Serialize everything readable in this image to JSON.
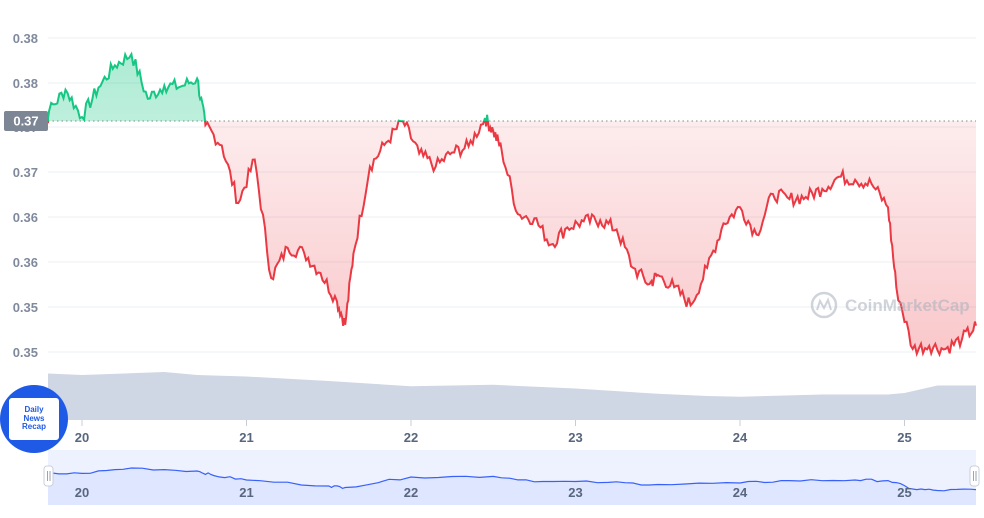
{
  "chart_data": {
    "type": "line",
    "x_tick_labels": [
      "20",
      "21",
      "22",
      "23",
      "24",
      "25"
    ],
    "y_tick_labels": [
      "0.38",
      "0.38",
      "0.37",
      "0.37",
      "0.36",
      "0.36",
      "0.35",
      "0.35"
    ],
    "baseline_label": "0.37",
    "watermark": "CoinMarketCap",
    "grid": true,
    "colors": {
      "above_baseline": "#16c784",
      "below_baseline": "#ea3943",
      "volume": "#cfd6e4",
      "navigator_line": "#3861fb",
      "navigator_fill": "#dfe6ff"
    },
    "price_series": {
      "x": [
        19.72,
        19.8,
        19.9,
        20.0,
        20.1,
        20.2,
        20.3,
        20.4,
        20.5,
        20.6,
        20.7,
        20.75,
        20.85,
        20.95,
        21.05,
        21.15,
        21.25,
        21.35,
        21.45,
        21.55,
        21.6,
        21.65,
        21.75,
        21.85,
        21.95,
        22.05,
        22.15,
        22.25,
        22.35,
        22.45,
        22.5,
        22.55,
        22.65,
        22.75,
        22.85,
        22.95,
        23.05,
        23.15,
        23.25,
        23.35,
        23.45,
        23.5,
        23.6,
        23.7,
        23.8,
        23.9,
        24.0,
        24.1,
        24.2,
        24.3,
        24.4,
        24.5,
        24.6,
        24.7,
        24.8,
        24.9,
        24.95,
        25.05,
        25.15,
        25.25,
        25.35,
        25.44
      ],
      "y": [
        0.3712,
        0.3723,
        0.3744,
        0.3717,
        0.3746,
        0.3768,
        0.3779,
        0.3735,
        0.3748,
        0.3747,
        0.3755,
        0.3709,
        0.3689,
        0.3632,
        0.3675,
        0.3558,
        0.3588,
        0.3583,
        0.3563,
        0.3535,
        0.3512,
        0.3582,
        0.3668,
        0.3692,
        0.3713,
        0.3681,
        0.3668,
        0.3682,
        0.3688,
        0.3716,
        0.3703,
        0.3685,
        0.3621,
        0.3617,
        0.3591,
        0.3608,
        0.3614,
        0.3615,
        0.3606,
        0.3568,
        0.3552,
        0.3561,
        0.3549,
        0.3531,
        0.3568,
        0.3612,
        0.3628,
        0.3601,
        0.3641,
        0.3636,
        0.3638,
        0.3646,
        0.3658,
        0.3655,
        0.3651,
        0.3628,
        0.3549,
        0.3488,
        0.3491,
        0.3488,
        0.3498,
        0.3511
      ]
    },
    "volume_series": {
      "x": [
        19.72,
        20.0,
        20.5,
        20.7,
        21.0,
        21.5,
        22.0,
        22.5,
        23.0,
        23.5,
        23.8,
        24.0,
        24.5,
        24.9,
        25.0,
        25.2,
        25.44
      ],
      "y": [
        0.62,
        0.6,
        0.64,
        0.6,
        0.58,
        0.52,
        0.45,
        0.47,
        0.42,
        0.35,
        0.32,
        0.31,
        0.34,
        0.34,
        0.36,
        0.46,
        0.46
      ]
    },
    "navigator_series": {
      "x": [
        19.72,
        20.0,
        20.3,
        20.7,
        20.8,
        21.0,
        21.5,
        21.6,
        22.0,
        22.5,
        22.8,
        23.2,
        23.5,
        24.0,
        24.3,
        24.7,
        24.9,
        25.05,
        25.2,
        25.44
      ],
      "y": [
        0.6,
        0.62,
        0.8,
        0.7,
        0.55,
        0.4,
        0.2,
        0.15,
        0.5,
        0.52,
        0.35,
        0.32,
        0.25,
        0.3,
        0.38,
        0.4,
        0.38,
        0.1,
        0.05,
        0.08
      ]
    }
  }
}
